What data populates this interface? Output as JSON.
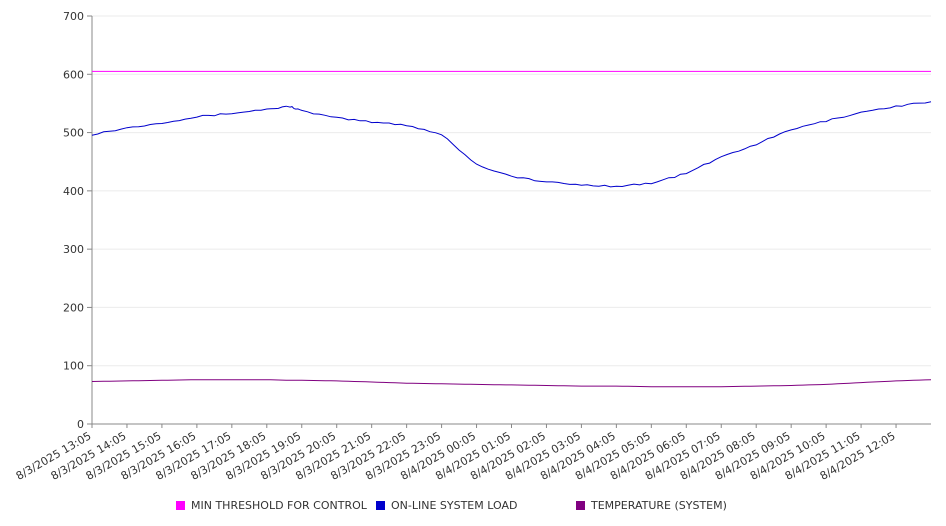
{
  "chart_data": {
    "type": "line",
    "title": "",
    "xlabel": "",
    "ylabel": "",
    "ylim": [
      0,
      700
    ],
    "yticks": [
      0,
      100,
      200,
      300,
      400,
      500,
      600,
      700
    ],
    "x_tick_labels": [
      "8/3/2025 13:05",
      "8/3/2025 14:05",
      "8/3/2025 15:05",
      "8/3/2025 16:05",
      "8/3/2025 17:05",
      "8/3/2025 18:05",
      "8/3/2025 19:05",
      "8/3/2025 20:05",
      "8/3/2025 21:05",
      "8/3/2025 22:05",
      "8/3/2025 23:05",
      "8/4/2025 00:05",
      "8/4/2025 01:05",
      "8/4/2025 02:05",
      "8/4/2025 03:05",
      "8/4/2025 04:05",
      "8/4/2025 05:05",
      "8/4/2025 06:05",
      "8/4/2025 07:05",
      "8/4/2025 08:05",
      "8/4/2025 09:05",
      "8/4/2025 10:05",
      "8/4/2025 11:05",
      "8/4/2025 12:05"
    ],
    "x_times": [
      "8/3/2025 13:05",
      "8/3/2025 14:05",
      "8/3/2025 15:05",
      "8/3/2025 16:05",
      "8/3/2025 17:05",
      "8/3/2025 18:05",
      "8/3/2025 18:45",
      "8/3/2025 19:05",
      "8/3/2025 20:05",
      "8/3/2025 21:05",
      "8/3/2025 22:05",
      "8/3/2025 23:05",
      "8/4/2025 00:05",
      "8/4/2025 01:05",
      "8/4/2025 02:05",
      "8/4/2025 03:05",
      "8/4/2025 04:05",
      "8/4/2025 05:05",
      "8/4/2025 06:05",
      "8/4/2025 07:05",
      "8/4/2025 08:05",
      "8/4/2025 09:05",
      "8/4/2025 10:05",
      "8/4/2025 11:05",
      "8/4/2025 12:05",
      "8/4/2025 13:05"
    ],
    "grid": true,
    "legend_position": "bottom",
    "series": [
      {
        "name": "MIN THRESHOLD FOR CONTROL",
        "color": "#ff00ff",
        "values": [
          605,
          605,
          605,
          605,
          605,
          605,
          605,
          605,
          605,
          605,
          605,
          605,
          605,
          605,
          605,
          605,
          605,
          605,
          605,
          605,
          605,
          605,
          605,
          605,
          605,
          605
        ]
      },
      {
        "name": "ON-LINE SYSTEM LOAD",
        "color": "#0000cc",
        "values": [
          497,
          508,
          517,
          527,
          533,
          540,
          545,
          537,
          525,
          518,
          513,
          497,
          445,
          425,
          415,
          410,
          408,
          413,
          430,
          458,
          480,
          505,
          520,
          535,
          545,
          553
        ]
      },
      {
        "name": "TEMPERATURE (SYSTEM)",
        "color": "#800080",
        "values": [
          73,
          74,
          75,
          76,
          76,
          76,
          75,
          75,
          74,
          72,
          70,
          69,
          68,
          67,
          66,
          65,
          65,
          64,
          64,
          64,
          65,
          66,
          68,
          71,
          74,
          76
        ]
      }
    ]
  }
}
